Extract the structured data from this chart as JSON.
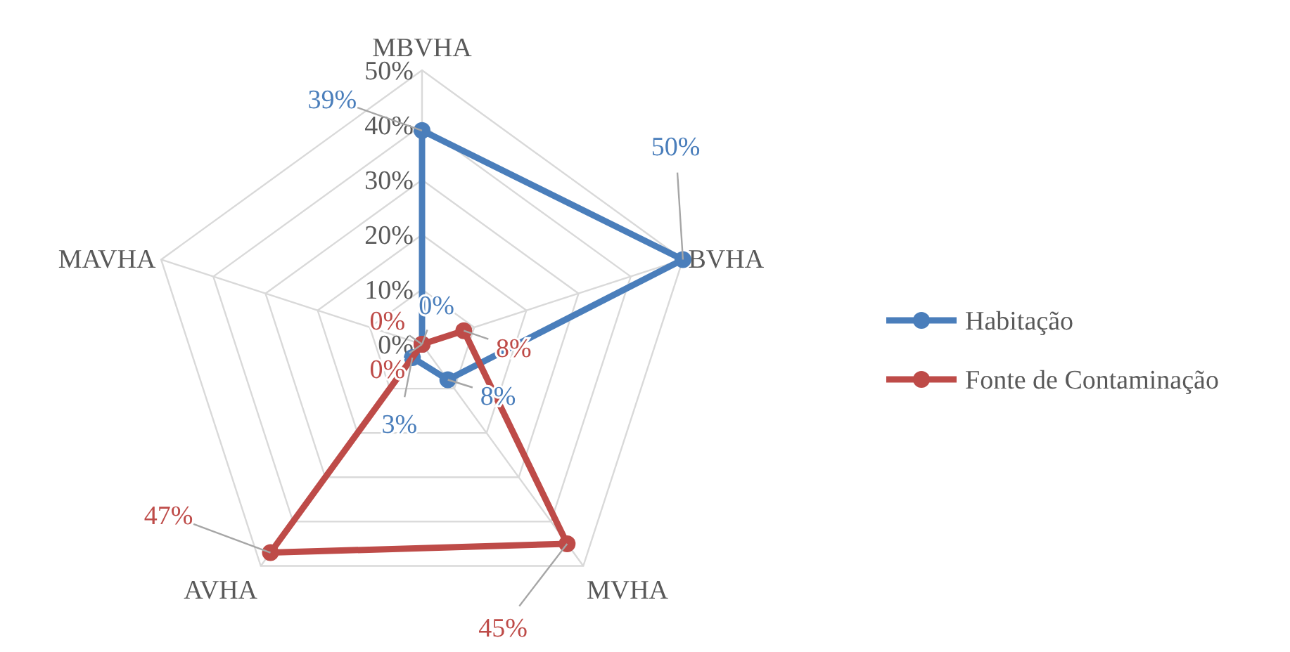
{
  "chart_data": {
    "type": "radar",
    "categories": [
      "MBVHA",
      "BVHA",
      "MVHA",
      "AVHA",
      "MAVHA"
    ],
    "ylim": [
      0,
      50
    ],
    "yticks": [
      {
        "value": 0,
        "label": "0%"
      },
      {
        "value": 10,
        "label": "10%"
      },
      {
        "value": 20,
        "label": "20%"
      },
      {
        "value": 30,
        "label": "30%"
      },
      {
        "value": 40,
        "label": "40%"
      },
      {
        "value": 50,
        "label": "50%"
      }
    ],
    "grid": true,
    "legend": "right",
    "marker": "circle",
    "series": [
      {
        "name": "Habitação",
        "color": "#4a7ebb",
        "values": [
          39,
          50,
          8,
          3,
          0
        ],
        "value_labels": [
          "39%",
          "50%",
          "8%",
          "3%",
          "0%"
        ]
      },
      {
        "name": "Fonte de Contaminação",
        "color": "#be4b48",
        "values": [
          0,
          8,
          45,
          47,
          0
        ],
        "value_labels": [
          "0%",
          "8%",
          "45%",
          "47%",
          "0%"
        ]
      }
    ]
  }
}
